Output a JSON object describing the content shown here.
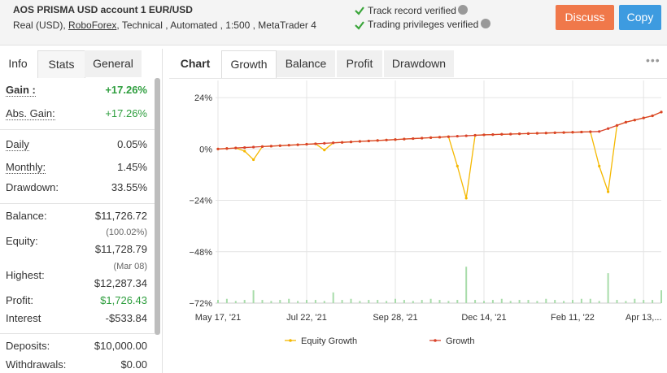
{
  "header": {
    "title": "AOS PRISMA USD account 1 EUR/USD",
    "subtitle": [
      "Real (USD),",
      "RoboForex",
      ", Technical , Automated , 1:500 , MetaTrader 4"
    ],
    "verified": [
      "Track record verified",
      "Trading privileges verified"
    ],
    "buttons": [
      "Discuss",
      "Copy"
    ]
  },
  "left_tabs": [
    "Info",
    "Stats",
    "General"
  ],
  "stats": [
    {
      "label": "Gain :",
      "value": "+17.26%",
      "color": "#2e9e3e"
    },
    {
      "label": "Abs. Gain:",
      "value": "+17.26%",
      "color": "#2e9e3e"
    },
    {
      "label": "Daily",
      "value": "0.05%"
    },
    {
      "label": "Monthly:",
      "value": "1.45%"
    },
    {
      "label": "Drawdown:",
      "value": "33.55%"
    },
    {
      "label": "Balance:",
      "value": "$11,726.72"
    },
    {
      "label": "Equity:",
      "note": "(100.02%)",
      "value": "$11,728.79"
    },
    {
      "label": "Highest:",
      "note": "(Mar 08)",
      "value": "$12,287.34"
    },
    {
      "label": "Profit:",
      "value": "$1,726.43",
      "color": "#2e9e3e"
    },
    {
      "label": "Interest",
      "value": "-$533.84"
    },
    {
      "label": "Deposits:",
      "value": "$10,000.00"
    },
    {
      "label": "Withdrawals:",
      "value": "$0.00"
    }
  ],
  "chart_tabs": [
    "Chart",
    "Growth",
    "Balance",
    "Profit",
    "Drawdown"
  ],
  "chart_data": {
    "type": "line",
    "categories": [
      "May 17, '21",
      null,
      null,
      null,
      null,
      null,
      null,
      null,
      null,
      null,
      "Jul 22, '21",
      null,
      null,
      null,
      null,
      null,
      null,
      null,
      null,
      null,
      "Sep 28, '21",
      null,
      null,
      null,
      null,
      null,
      null,
      null,
      null,
      null,
      "Dec 14, '21",
      null,
      null,
      null,
      null,
      null,
      null,
      null,
      null,
      null,
      "Feb 11, '22",
      null,
      null,
      null,
      null,
      null,
      null,
      null,
      "Apr 13,...",
      null,
      null
    ],
    "series": [
      {
        "name": "Equity Growth",
        "color": "#f5b800",
        "values": [
          0,
          0.22,
          0.44,
          -1,
          -5,
          1.1,
          1.32,
          1.54,
          1.76,
          1.98,
          2.2,
          2.42,
          -0.5,
          2.86,
          3.08,
          3.3,
          3.52,
          3.74,
          3.96,
          4.18,
          4.4,
          4.62,
          4.84,
          5.06,
          5.28,
          5.5,
          5.72,
          -8,
          -23,
          6.38,
          6.6,
          6.72,
          6.84,
          6.96,
          7.08,
          7.2,
          7.32,
          7.44,
          7.56,
          7.68,
          7.8,
          7.92,
          8.04,
          -8,
          -20,
          11,
          12.5,
          13.5,
          14.5,
          15.5,
          17.26
        ]
      },
      {
        "name": "Growth",
        "color": "#d9432b",
        "values": [
          0,
          0.22,
          0.44,
          0.66,
          0.88,
          1.1,
          1.32,
          1.54,
          1.76,
          1.98,
          2.2,
          2.42,
          2.64,
          2.86,
          3.08,
          3.3,
          3.52,
          3.74,
          3.96,
          4.18,
          4.4,
          4.62,
          4.84,
          5.06,
          5.28,
          5.5,
          5.72,
          5.94,
          6.16,
          6.38,
          6.6,
          6.72,
          6.84,
          6.96,
          7.08,
          7.2,
          7.32,
          7.44,
          7.56,
          7.68,
          7.8,
          7.92,
          8.04,
          8.16,
          9.5,
          11,
          12.5,
          13.5,
          14.5,
          15.5,
          17.26
        ]
      }
    ],
    "bars": {
      "color": "#a8dcaa",
      "values": [
        -70.5,
        -70,
        -71,
        -70.5,
        -66,
        -70.5,
        -71,
        -70.5,
        -70,
        -71,
        -70.5,
        -70.5,
        -71,
        -67,
        -70.5,
        -70,
        -71,
        -70.5,
        -70.5,
        -71,
        -70,
        -70.5,
        -71,
        -70.5,
        -70,
        -70.5,
        -71,
        -70.5,
        -55,
        -70.5,
        -71,
        -70.5,
        -70,
        -71,
        -70.5,
        -70.5,
        -71,
        -70,
        -70.5,
        -71,
        -70.5,
        -70,
        -70,
        -71,
        -58,
        -70.5,
        -71,
        -70,
        -70.5,
        -70.5,
        -66
      ]
    },
    "ylim": [
      -72,
      32
    ],
    "yticks": [
      {
        "value": -72,
        "label": "−72%"
      },
      {
        "value": -48,
        "label": "−48%"
      },
      {
        "value": -24,
        "label": "−24%"
      },
      {
        "value": 0,
        "label": "0%"
      },
      {
        "value": 24,
        "label": "24%"
      }
    ],
    "grid": true
  }
}
